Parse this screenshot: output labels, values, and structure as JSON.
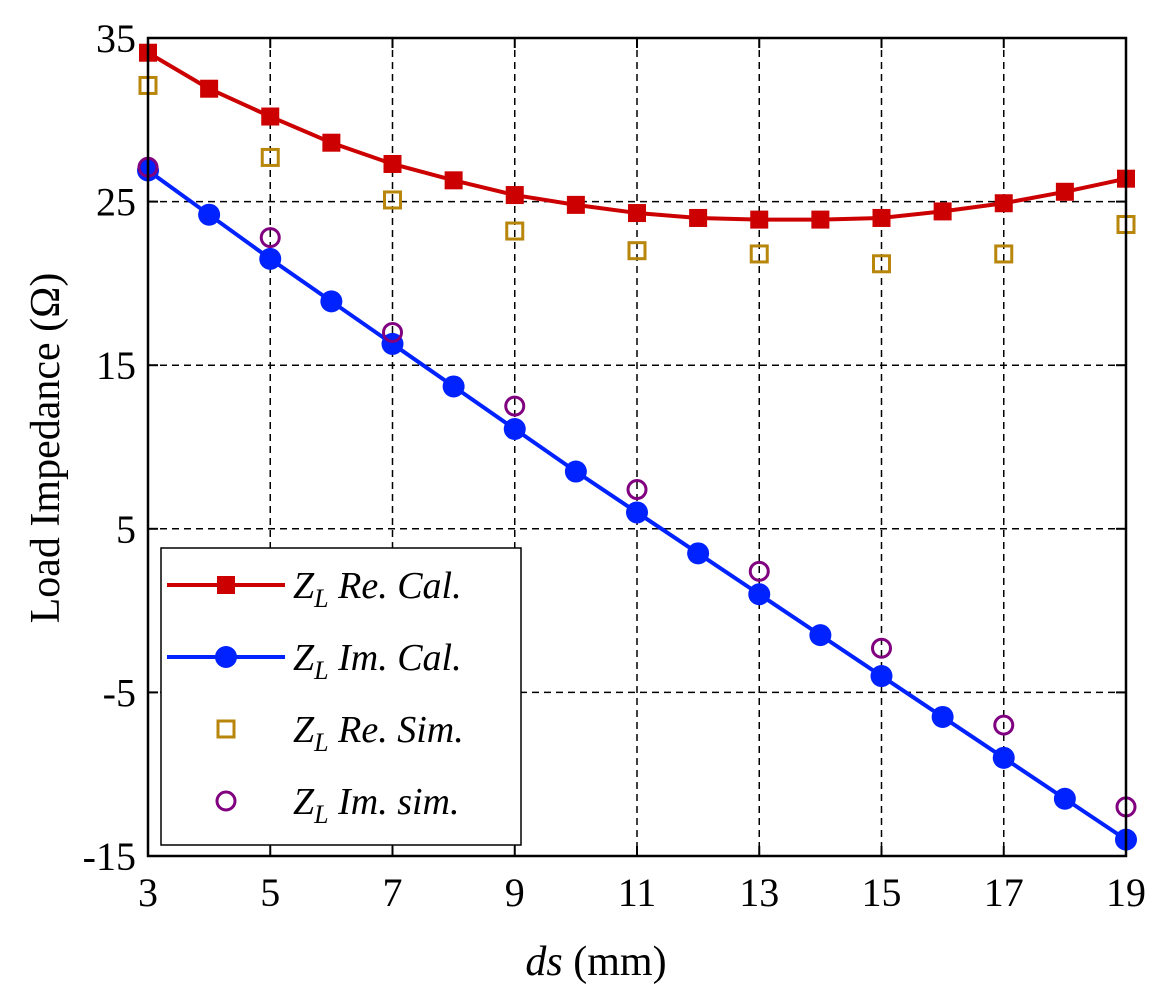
{
  "chart_data": {
    "type": "line",
    "xlabel_italic": "ds",
    "xlabel_unit": "(mm)",
    "ylabel": "Load Impedance (Ω)",
    "xlim": [
      3,
      19
    ],
    "ylim": [
      -15,
      35
    ],
    "xticks": [
      "3",
      "5",
      "7",
      "9",
      "11",
      "13",
      "15",
      "17",
      "19"
    ],
    "yticks": [
      "35",
      "25",
      "15",
      "5",
      "-5",
      "-15"
    ],
    "grid": true,
    "legend_position": "bottom-left",
    "series": [
      {
        "key": "re-cal",
        "legend_main": "Z",
        "legend_sub": "L",
        "legend_rest": " Re. Cal.",
        "color": "#cc0000",
        "line": true,
        "marker": "square-filled",
        "x": [
          3,
          4,
          5,
          6,
          7,
          8,
          9,
          10,
          11,
          12,
          13,
          14,
          15,
          16,
          17,
          18,
          19
        ],
        "y": [
          34.1,
          31.9,
          30.2,
          28.6,
          27.3,
          26.3,
          25.4,
          24.8,
          24.3,
          24.0,
          23.9,
          23.9,
          24.0,
          24.4,
          24.9,
          25.6,
          26.4
        ]
      },
      {
        "key": "im-cal",
        "legend_main": "Z",
        "legend_sub": "L",
        "legend_rest": " Im. Cal.",
        "color": "#0022ff",
        "line": true,
        "marker": "circle-filled",
        "x": [
          3,
          4,
          5,
          6,
          7,
          8,
          9,
          10,
          11,
          12,
          13,
          14,
          15,
          16,
          17,
          18,
          19
        ],
        "y": [
          26.9,
          24.2,
          21.5,
          18.9,
          16.3,
          13.7,
          11.1,
          8.5,
          6.0,
          3.5,
          1.0,
          -1.5,
          -4.0,
          -6.5,
          -9.0,
          -11.5,
          -14.0
        ]
      },
      {
        "key": "re-sim",
        "legend_main": "Z",
        "legend_sub": "L",
        "legend_rest": " Re. Sim.",
        "color": "#b8860b",
        "line": false,
        "marker": "square-open",
        "x": [
          3,
          5,
          7,
          9,
          11,
          13,
          15,
          17,
          19
        ],
        "y": [
          32.1,
          27.7,
          25.1,
          23.2,
          22.0,
          21.8,
          21.2,
          21.8,
          23.6
        ]
      },
      {
        "key": "im-sim",
        "legend_main": "Z",
        "legend_sub": "L",
        "legend_rest": " Im. sim.",
        "color": "#800080",
        "line": false,
        "marker": "circle-open",
        "x": [
          3,
          5,
          7,
          9,
          11,
          13,
          15,
          17,
          19
        ],
        "y": [
          27.1,
          22.8,
          17.0,
          12.5,
          7.4,
          2.4,
          -2.3,
          -7.0,
          -12.0
        ]
      }
    ]
  }
}
